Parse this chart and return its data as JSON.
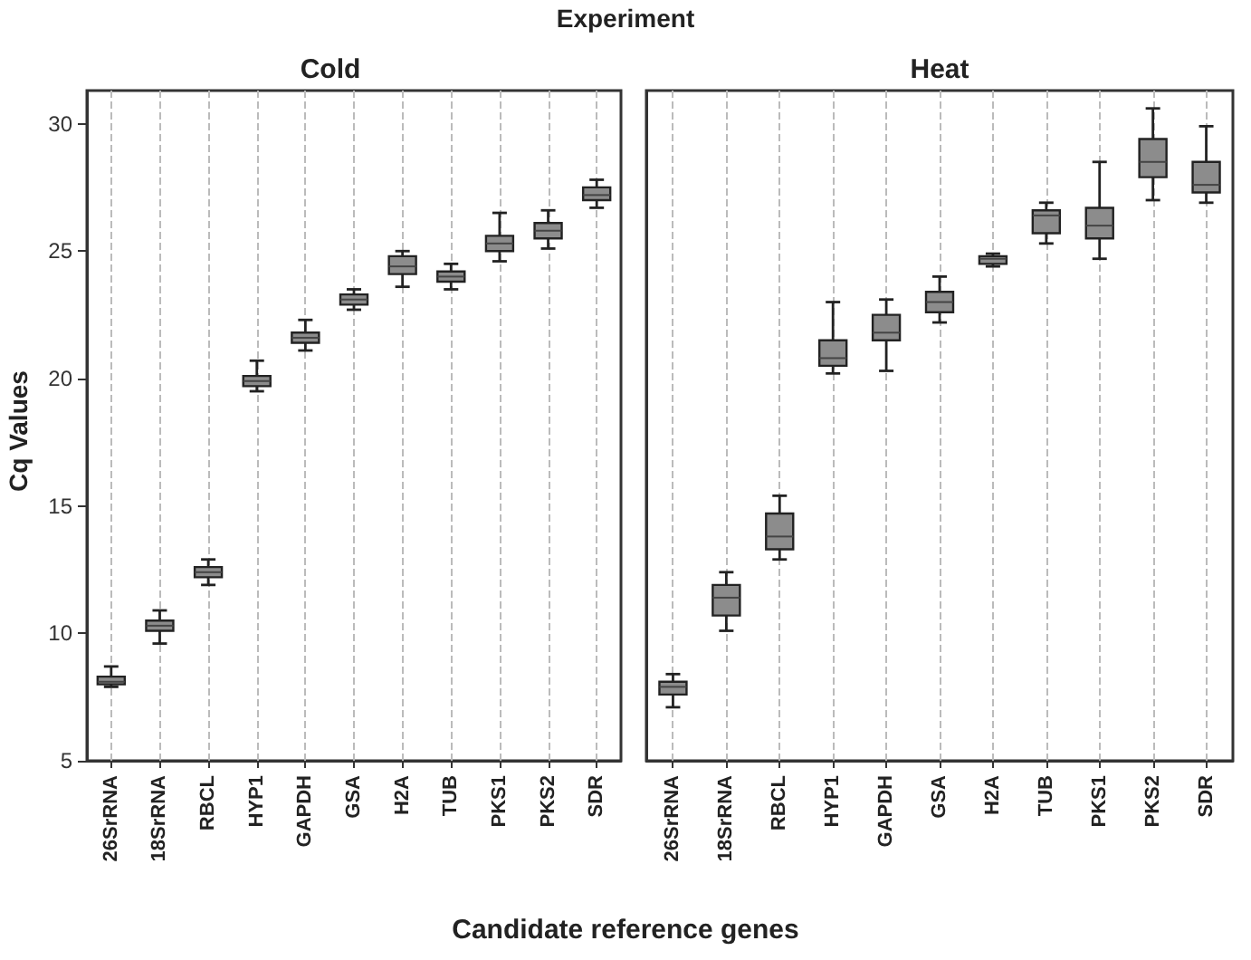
{
  "chart_data": [
    {
      "type": "box",
      "title": "Cold",
      "annotations": [
        "Experiment"
      ],
      "xlabel": "Candidate reference genes",
      "ylabel": "Cq Values",
      "categories": [
        "26SrRNA",
        "18SrRNA",
        "RBCL",
        "HYP1",
        "GAPDH",
        "GSA",
        "H2A",
        "TUB",
        "PKS1",
        "PKS2",
        "SDR"
      ],
      "series": [
        {
          "color": "#8c8c8c",
          "boxes": [
            {
              "low": 7.9,
              "q1": 8.0,
              "median": 8.1,
              "q3": 8.3,
              "high": 8.7
            },
            {
              "low": 9.6,
              "q1": 10.1,
              "median": 10.3,
              "q3": 10.5,
              "high": 10.9
            },
            {
              "low": 11.9,
              "q1": 12.2,
              "median": 12.4,
              "q3": 12.6,
              "high": 12.9
            },
            {
              "low": 19.5,
              "q1": 19.7,
              "median": 19.9,
              "q3": 20.1,
              "high": 20.7
            },
            {
              "low": 21.1,
              "q1": 21.4,
              "median": 21.6,
              "q3": 21.8,
              "high": 22.3
            },
            {
              "low": 22.7,
              "q1": 22.9,
              "median": 23.1,
              "q3": 23.3,
              "high": 23.5
            },
            {
              "low": 23.6,
              "q1": 24.1,
              "median": 24.4,
              "q3": 24.8,
              "high": 25.0
            },
            {
              "low": 23.5,
              "q1": 23.8,
              "median": 24.0,
              "q3": 24.2,
              "high": 24.5
            },
            {
              "low": 24.6,
              "q1": 25.0,
              "median": 25.3,
              "q3": 25.6,
              "high": 26.5
            },
            {
              "low": 25.1,
              "q1": 25.5,
              "median": 25.8,
              "q3": 26.1,
              "high": 26.6
            },
            {
              "low": 26.7,
              "q1": 27.0,
              "median": 27.2,
              "q3": 27.5,
              "high": 27.8
            }
          ]
        }
      ],
      "ylim": [
        5,
        31.3
      ],
      "yticks": [
        5,
        10,
        15,
        20,
        25,
        30
      ],
      "grid": "x"
    },
    {
      "type": "box",
      "title": "Heat",
      "categories": [
        "26SrRNA",
        "18SrRNA",
        "RBCL",
        "HYP1",
        "GAPDH",
        "GSA",
        "H2A",
        "TUB",
        "PKS1",
        "PKS2",
        "SDR"
      ],
      "series": [
        {
          "color": "#8c8c8c",
          "boxes": [
            {
              "low": 7.1,
              "q1": 7.6,
              "median": 7.9,
              "q3": 8.1,
              "high": 8.4
            },
            {
              "low": 10.1,
              "q1": 10.7,
              "median": 11.4,
              "q3": 11.9,
              "high": 12.4
            },
            {
              "low": 12.9,
              "q1": 13.3,
              "median": 13.8,
              "q3": 14.7,
              "high": 15.4
            },
            {
              "low": 20.2,
              "q1": 20.5,
              "median": 20.8,
              "q3": 21.5,
              "high": 23.0
            },
            {
              "low": 20.3,
              "q1": 21.5,
              "median": 21.8,
              "q3": 22.5,
              "high": 23.1
            },
            {
              "low": 22.2,
              "q1": 22.6,
              "median": 23.0,
              "q3": 23.4,
              "high": 24.0
            },
            {
              "low": 24.4,
              "q1": 24.5,
              "median": 24.7,
              "q3": 24.8,
              "high": 24.9
            },
            {
              "low": 25.3,
              "q1": 25.7,
              "median": 26.4,
              "q3": 26.6,
              "high": 26.9
            },
            {
              "low": 24.7,
              "q1": 25.5,
              "median": 26.0,
              "q3": 26.7,
              "high": 28.5
            },
            {
              "low": 27.0,
              "q1": 27.9,
              "median": 28.5,
              "q3": 29.4,
              "high": 30.6
            },
            {
              "low": 26.9,
              "q1": 27.3,
              "median": 27.6,
              "q3": 28.5,
              "high": 29.9
            }
          ]
        }
      ],
      "ylim": [
        5,
        31.3
      ],
      "yticks": [
        5,
        10,
        15,
        20,
        25,
        30
      ],
      "grid": "x",
      "tick_labels": "x"
    }
  ]
}
